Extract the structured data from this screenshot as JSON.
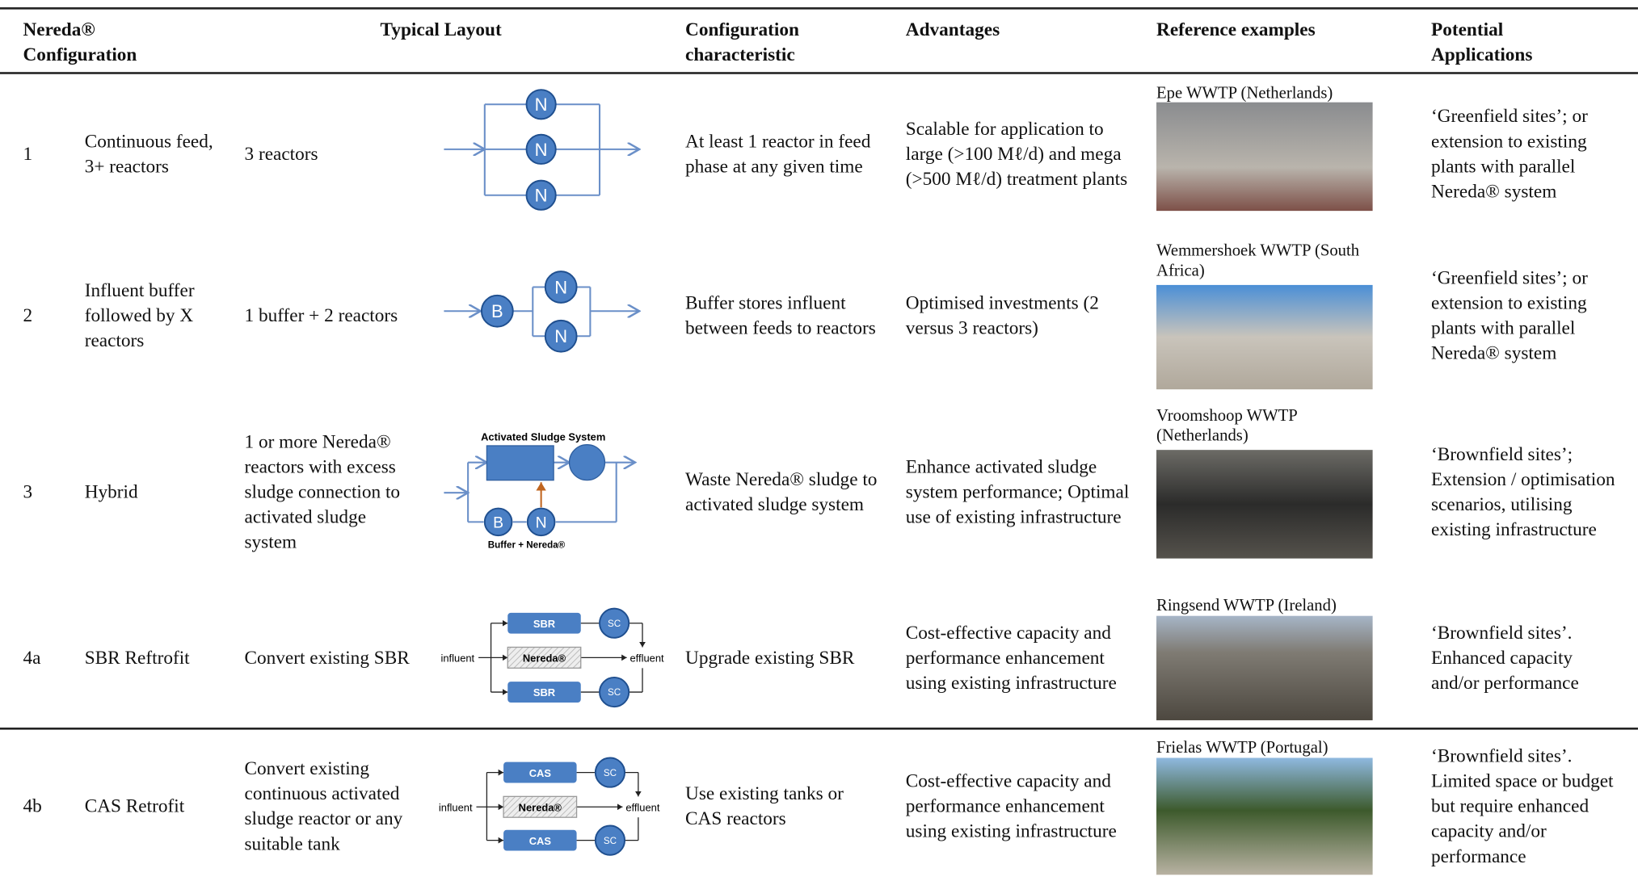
{
  "table": {
    "header": [
      "Nereda® Configuration",
      "Typical Layout",
      "Configuration characteristic",
      "Advantages",
      "Reference examples",
      "Potential Applications"
    ],
    "rows": [
      {
        "id": "1",
        "configuration": "Continuous feed, 3+ reactors",
        "layout": "3 reactors",
        "characteristic": "At least 1 reactor in feed phase at any given time",
        "advantages": "Scalable for application to large (>100 Mℓ/d) and mega (>500 Mℓ/d) treatment plants",
        "reference": "Epe WWTP (Netherlands)",
        "applications": "‘Greenfield sites’; or extension to existing plants with parallel Nereda® system"
      },
      {
        "id": "2",
        "configuration": "Influent buffer followed by X reactors",
        "layout": "1 buffer + 2 reactors",
        "characteristic": "Buffer stores influent between feeds to reactors",
        "advantages": "Optimised investments (2 versus 3 reactors)",
        "reference": "Wemmershoek WWTP (South Africa)",
        "applications": "‘Greenfield sites’; or extension to existing plants with parallel Nereda® system"
      },
      {
        "id": "3",
        "configuration": "Hybrid",
        "layout": "1 or more Nereda® reactors with excess sludge connection to activated sludge system",
        "characteristic": "Waste Nereda® sludge to activated sludge system",
        "advantages": "Enhance activated sludge system performance; Optimal use of existing infrastructure",
        "reference": "Vroomshoop WWTP (Netherlands)",
        "applications": "‘Brownfield sites’; Extension / optimisation scenarios, utilising existing infrastructure"
      },
      {
        "id": "4a",
        "configuration": "SBR Reftrofit",
        "layout": "Convert existing SBR",
        "characteristic": "Upgrade existing SBR",
        "advantages": "Cost-effective capacity and performance enhancement using existing infrastructure",
        "reference": "Ringsend WWTP (Ireland)",
        "applications": "‘Brownfield sites’. Enhanced capacity and/or performance"
      },
      {
        "id": "4b",
        "configuration": "CAS Retrofit",
        "layout": "Convert existing continuous activated sludge reactor or any suitable tank",
        "characteristic": "Use existing tanks or CAS reactors",
        "advantages": "Cost-effective capacity and performance enhancement using existing infrastructure",
        "reference": "Frielas WWTP (Portugal)",
        "applications": "‘Brownfield sites’. Limited space or budget but require enhanced capacity and/or performance"
      }
    ]
  },
  "diagrams": {
    "reactor": "N",
    "buffer": "B",
    "activated_sludge": "Activated Sludge System",
    "buffer_nereda": "Buffer + Nereda®",
    "sbr": "SBR",
    "cas": "CAS",
    "settler": "SC",
    "nereda": "Nereda®",
    "influent": "influent",
    "effluent": "effluent"
  }
}
